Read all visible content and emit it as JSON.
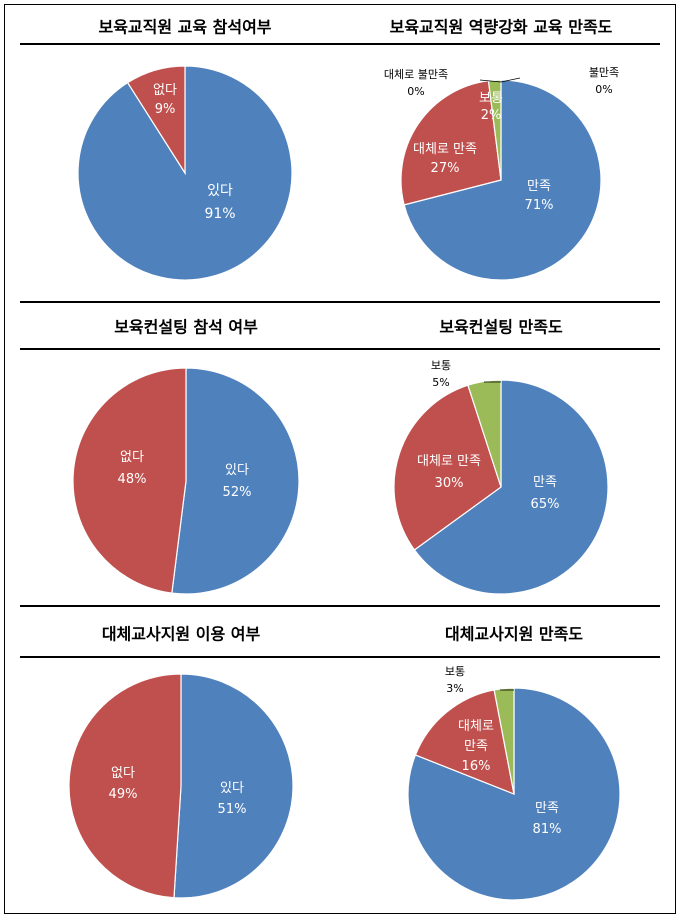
{
  "colors": {
    "blue": "#4f81bd",
    "red": "#c0504d",
    "green": "#9bbb59"
  },
  "chart_data": [
    {
      "type": "pie",
      "title": "보육교직원 교육 참석여부",
      "slices": [
        {
          "label": "있다",
          "value": 91,
          "pct": "91%",
          "color": "#4f81bd"
        },
        {
          "label": "없다",
          "value": 9,
          "pct": "9%",
          "color": "#c0504d"
        }
      ]
    },
    {
      "type": "pie",
      "title": "보육교직원 역량강화 교육 만족도",
      "slices": [
        {
          "label": "만족",
          "value": 71,
          "pct": "71%",
          "color": "#4f81bd"
        },
        {
          "label": "대체로 만족",
          "value": 27,
          "pct": "27%",
          "color": "#c0504d"
        },
        {
          "label": "보통",
          "value": 2,
          "pct": "2%",
          "color": "#9bbb59"
        },
        {
          "label": "대체로 불만족",
          "value": 0,
          "pct": "0%",
          "color": "#8064a2"
        },
        {
          "label": "불만족",
          "value": 0,
          "pct": "0%",
          "color": "#4bacc6"
        }
      ]
    },
    {
      "type": "pie",
      "title": "보육컨설팅 참석 여부",
      "slices": [
        {
          "label": "있다",
          "value": 52,
          "pct": "52%",
          "color": "#4f81bd"
        },
        {
          "label": "없다",
          "value": 48,
          "pct": "48%",
          "color": "#c0504d"
        }
      ]
    },
    {
      "type": "pie",
      "title": "보육컨설팅 만족도",
      "slices": [
        {
          "label": "만족",
          "value": 65,
          "pct": "65%",
          "color": "#4f81bd"
        },
        {
          "label": "대체로 만족",
          "value": 30,
          "pct": "30%",
          "color": "#c0504d"
        },
        {
          "label": "보통",
          "value": 5,
          "pct": "5%",
          "color": "#9bbb59"
        }
      ]
    },
    {
      "type": "pie",
      "title": "대체교사지원 이용 여부",
      "slices": [
        {
          "label": "있다",
          "value": 51,
          "pct": "51%",
          "color": "#4f81bd"
        },
        {
          "label": "없다",
          "value": 49,
          "pct": "49%",
          "color": "#c0504d"
        }
      ]
    },
    {
      "type": "pie",
      "title": "대체교사지원 만족도",
      "slices": [
        {
          "label": "만족",
          "value": 81,
          "pct": "81%",
          "color": "#4f81bd"
        },
        {
          "label": "대체로 만족",
          "value": 16,
          "pct": "16%",
          "color": "#c0504d"
        },
        {
          "label": "보통",
          "value": 3,
          "pct": "3%",
          "color": "#9bbb59"
        }
      ]
    }
  ]
}
